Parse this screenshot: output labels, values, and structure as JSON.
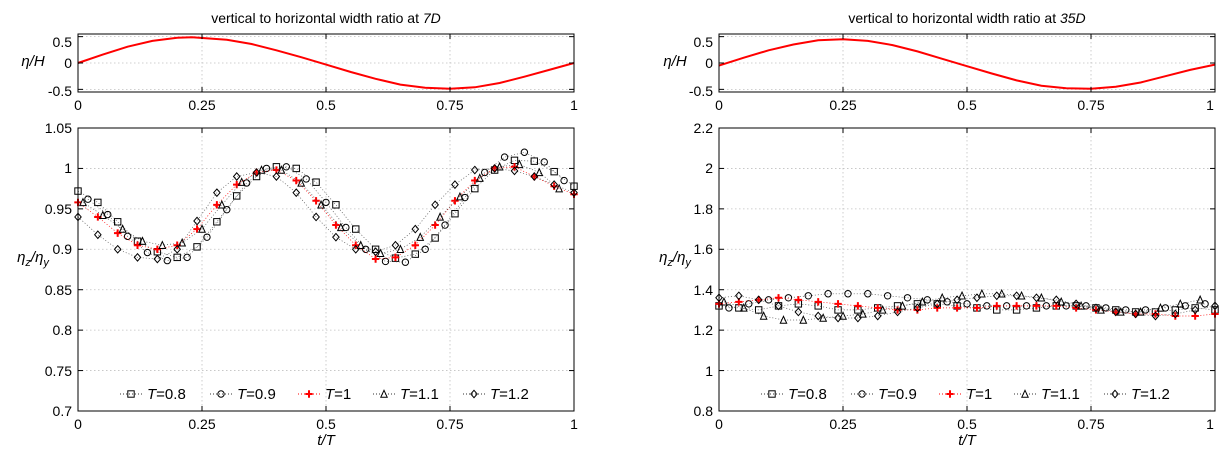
{
  "panels": [
    {
      "title": "vertical to horizontal width ratio at ",
      "title_em": "7D",
      "top_ylabel": "η/H",
      "main_ylabel": "ηz/ηy",
      "xlabel": "t/T",
      "xticks": [
        "0",
        "0.25",
        "0.5",
        "0.75",
        "1"
      ],
      "top_yticks": [
        "0.5",
        "0",
        "-0.5"
      ],
      "main_yticks": [
        "1.05",
        "1",
        "0.95",
        "0.9",
        "0.85",
        "0.8",
        "0.75",
        "0.7"
      ]
    },
    {
      "title": "vertical to horizontal width ratio at ",
      "title_em": "35D",
      "top_ylabel": "η/H",
      "main_ylabel": "ηz/ηy",
      "xlabel": "t/T",
      "xticks": [
        "0",
        "0.25",
        "0.5",
        "0.75",
        "1"
      ],
      "top_yticks": [
        "0.5",
        "0",
        "-0.5"
      ],
      "main_yticks": [
        "2.2",
        "2",
        "1.8",
        "1.6",
        "1.4",
        "1.2",
        "1",
        "0.8"
      ]
    }
  ],
  "legend": [
    {
      "label": "T=0.8",
      "marker": "square",
      "color": "#000000"
    },
    {
      "label": "T=0.9",
      "marker": "circle",
      "color": "#000000"
    },
    {
      "label": "T=1",
      "marker": "plus",
      "color": "#ff0000"
    },
    {
      "label": "T=1.1",
      "marker": "triangle",
      "color": "#000000"
    },
    {
      "label": "T=1.2",
      "marker": "diamond",
      "color": "#000000"
    }
  ],
  "chart_data": [
    {
      "type": "line",
      "title": "vertical to horizontal width ratio at 7D",
      "xlabel": "",
      "ylabel": "η/H",
      "xlim": [
        0,
        1
      ],
      "ylim": [
        -0.55,
        0.55
      ],
      "grid": true,
      "series": [
        {
          "name": "",
          "color": "#ff0000",
          "x": [
            0,
            0.05,
            0.1,
            0.15,
            0.2,
            0.23,
            0.3,
            0.35,
            0.4,
            0.45,
            0.5,
            0.55,
            0.6,
            0.65,
            0.7,
            0.75,
            0.8,
            0.85,
            0.9,
            0.95,
            1
          ],
          "y": [
            0,
            0.16,
            0.31,
            0.42,
            0.48,
            0.49,
            0.44,
            0.36,
            0.24,
            0.11,
            -0.03,
            -0.17,
            -0.3,
            -0.41,
            -0.47,
            -0.49,
            -0.46,
            -0.38,
            -0.26,
            -0.13,
            0
          ]
        }
      ]
    },
    {
      "type": "scatter",
      "title": "",
      "xlabel": "t/T",
      "ylabel": "ηz/ηy",
      "xlim": [
        0,
        1
      ],
      "ylim": [
        0.7,
        1.05
      ],
      "grid": true,
      "legend_position": "bottom",
      "series": [
        {
          "name": "T=0.8",
          "marker": "square",
          "color": "#000000",
          "x": [
            0.0,
            0.04,
            0.08,
            0.12,
            0.16,
            0.2,
            0.24,
            0.28,
            0.32,
            0.36,
            0.4,
            0.44,
            0.48,
            0.52,
            0.56,
            0.6,
            0.64,
            0.68,
            0.72,
            0.76,
            0.8,
            0.84,
            0.88,
            0.92,
            0.96,
            1.0
          ],
          "y": [
            0.972,
            0.958,
            0.934,
            0.91,
            0.897,
            0.89,
            0.903,
            0.934,
            0.966,
            0.99,
            1.002,
            1.0,
            0.983,
            0.955,
            0.925,
            0.9,
            0.889,
            0.894,
            0.914,
            0.944,
            0.975,
            0.998,
            1.01,
            1.009,
            0.996,
            0.978
          ]
        },
        {
          "name": "T=0.9",
          "marker": "circle",
          "color": "#000000",
          "x": [
            0.02,
            0.06,
            0.1,
            0.14,
            0.18,
            0.22,
            0.26,
            0.3,
            0.34,
            0.38,
            0.42,
            0.46,
            0.5,
            0.54,
            0.58,
            0.62,
            0.66,
            0.7,
            0.74,
            0.78,
            0.82,
            0.86,
            0.9,
            0.94,
            0.98
          ],
          "y": [
            0.962,
            0.943,
            0.916,
            0.896,
            0.886,
            0.89,
            0.915,
            0.949,
            0.982,
            1.0,
            1.002,
            0.987,
            0.958,
            0.927,
            0.9,
            0.885,
            0.884,
            0.9,
            0.93,
            0.964,
            0.995,
            1.014,
            1.02,
            1.008,
            0.985
          ]
        },
        {
          "name": "T=1",
          "marker": "plus",
          "color": "#ff0000",
          "x": [
            0.0,
            0.04,
            0.08,
            0.12,
            0.16,
            0.2,
            0.24,
            0.28,
            0.32,
            0.36,
            0.4,
            0.44,
            0.48,
            0.52,
            0.56,
            0.6,
            0.64,
            0.68,
            0.72,
            0.76,
            0.8,
            0.84,
            0.88,
            0.92,
            0.96,
            1.0
          ],
          "y": [
            0.958,
            0.94,
            0.92,
            0.905,
            0.9,
            0.905,
            0.925,
            0.955,
            0.98,
            0.995,
            0.998,
            0.985,
            0.96,
            0.93,
            0.905,
            0.888,
            0.89,
            0.905,
            0.93,
            0.96,
            0.985,
            1.0,
            1.002,
            0.99,
            0.978,
            0.968
          ]
        },
        {
          "name": "T=1.1",
          "marker": "triangle",
          "color": "#000000",
          "x": [
            0.01,
            0.05,
            0.09,
            0.13,
            0.17,
            0.21,
            0.25,
            0.29,
            0.33,
            0.37,
            0.41,
            0.45,
            0.49,
            0.53,
            0.57,
            0.61,
            0.65,
            0.69,
            0.73,
            0.77,
            0.81,
            0.85,
            0.89,
            0.93,
            0.97
          ],
          "y": [
            0.958,
            0.942,
            0.925,
            0.91,
            0.905,
            0.908,
            0.925,
            0.955,
            0.983,
            0.998,
            0.998,
            0.982,
            0.955,
            0.927,
            0.905,
            0.895,
            0.9,
            0.915,
            0.94,
            0.965,
            0.988,
            1.002,
            1.005,
            0.995,
            0.975
          ]
        },
        {
          "name": "T=1.2",
          "marker": "diamond",
          "color": "#000000",
          "x": [
            0.0,
            0.04,
            0.08,
            0.12,
            0.16,
            0.2,
            0.24,
            0.28,
            0.32,
            0.36,
            0.4,
            0.44,
            0.48,
            0.52,
            0.56,
            0.6,
            0.64,
            0.68,
            0.72,
            0.76,
            0.8,
            0.84,
            0.88,
            0.92,
            0.96,
            1.0
          ],
          "y": [
            0.94,
            0.918,
            0.9,
            0.89,
            0.888,
            0.9,
            0.935,
            0.97,
            0.99,
            0.995,
            0.99,
            0.97,
            0.94,
            0.915,
            0.9,
            0.897,
            0.905,
            0.925,
            0.955,
            0.98,
            0.998,
            1.0,
            0.997,
            0.99,
            0.98,
            0.97
          ]
        }
      ]
    },
    {
      "type": "line",
      "title": "vertical to horizontal width ratio at 35D",
      "xlabel": "",
      "ylabel": "η/H",
      "xlim": [
        0,
        1
      ],
      "ylim": [
        -0.55,
        0.55
      ],
      "grid": true,
      "series": [
        {
          "name": "",
          "color": "#ff0000",
          "x": [
            0,
            0.05,
            0.1,
            0.15,
            0.2,
            0.25,
            0.3,
            0.35,
            0.4,
            0.45,
            0.5,
            0.55,
            0.6,
            0.65,
            0.7,
            0.75,
            0.8,
            0.85,
            0.9,
            0.95,
            1
          ],
          "y": [
            -0.05,
            0.1,
            0.24,
            0.35,
            0.43,
            0.45,
            0.42,
            0.34,
            0.22,
            0.08,
            -0.06,
            -0.2,
            -0.33,
            -0.43,
            -0.48,
            -0.49,
            -0.45,
            -0.37,
            -0.25,
            -0.13,
            -0.03
          ]
        }
      ]
    },
    {
      "type": "scatter",
      "title": "",
      "xlabel": "t/T",
      "ylabel": "ηz/ηy",
      "xlim": [
        0,
        1
      ],
      "ylim": [
        0.8,
        2.2
      ],
      "grid": true,
      "legend_position": "bottom",
      "series": [
        {
          "name": "T=0.8",
          "marker": "square",
          "color": "#000000",
          "x": [
            0.0,
            0.04,
            0.08,
            0.12,
            0.16,
            0.2,
            0.24,
            0.28,
            0.32,
            0.36,
            0.4,
            0.44,
            0.48,
            0.52,
            0.56,
            0.6,
            0.64,
            0.68,
            0.72,
            0.76,
            0.8,
            0.84,
            0.88,
            0.92,
            0.96,
            1.0
          ],
          "y": [
            1.32,
            1.31,
            1.3,
            1.32,
            1.33,
            1.32,
            1.3,
            1.3,
            1.31,
            1.32,
            1.33,
            1.33,
            1.32,
            1.31,
            1.3,
            1.3,
            1.31,
            1.32,
            1.32,
            1.31,
            1.3,
            1.29,
            1.29,
            1.3,
            1.31,
            1.3
          ]
        },
        {
          "name": "T=0.9",
          "marker": "circle",
          "color": "#000000",
          "x": [
            0.02,
            0.06,
            0.1,
            0.14,
            0.18,
            0.22,
            0.26,
            0.3,
            0.34,
            0.38,
            0.42,
            0.46,
            0.5,
            0.54,
            0.58,
            0.62,
            0.66,
            0.7,
            0.74,
            0.78,
            0.82,
            0.86,
            0.9,
            0.94,
            0.98
          ],
          "y": [
            1.31,
            1.33,
            1.35,
            1.36,
            1.37,
            1.38,
            1.38,
            1.38,
            1.37,
            1.36,
            1.35,
            1.34,
            1.33,
            1.32,
            1.32,
            1.32,
            1.32,
            1.32,
            1.32,
            1.31,
            1.3,
            1.3,
            1.31,
            1.32,
            1.33
          ]
        },
        {
          "name": "T=1",
          "marker": "plus",
          "color": "#ff0000",
          "x": [
            0.0,
            0.04,
            0.08,
            0.12,
            0.16,
            0.2,
            0.24,
            0.28,
            0.32,
            0.36,
            0.4,
            0.44,
            0.48,
            0.52,
            0.56,
            0.6,
            0.64,
            0.68,
            0.72,
            0.76,
            0.8,
            0.84,
            0.88,
            0.92,
            0.96,
            1.0
          ],
          "y": [
            1.33,
            1.34,
            1.35,
            1.36,
            1.35,
            1.34,
            1.33,
            1.32,
            1.31,
            1.3,
            1.3,
            1.31,
            1.31,
            1.31,
            1.32,
            1.32,
            1.32,
            1.32,
            1.31,
            1.3,
            1.29,
            1.28,
            1.28,
            1.27,
            1.27,
            1.28
          ]
        },
        {
          "name": "T=1.1",
          "marker": "triangle",
          "color": "#000000",
          "x": [
            0.01,
            0.05,
            0.09,
            0.13,
            0.17,
            0.21,
            0.25,
            0.29,
            0.33,
            0.37,
            0.41,
            0.45,
            0.49,
            0.53,
            0.57,
            0.61,
            0.65,
            0.69,
            0.73,
            0.77,
            0.81,
            0.85,
            0.89,
            0.93,
            0.97
          ],
          "y": [
            1.34,
            1.31,
            1.27,
            1.25,
            1.25,
            1.26,
            1.27,
            1.28,
            1.3,
            1.32,
            1.34,
            1.36,
            1.37,
            1.38,
            1.38,
            1.37,
            1.36,
            1.34,
            1.32,
            1.3,
            1.29,
            1.29,
            1.31,
            1.33,
            1.35
          ]
        },
        {
          "name": "T=1.2",
          "marker": "diamond",
          "color": "#000000",
          "x": [
            0.0,
            0.04,
            0.08,
            0.12,
            0.16,
            0.2,
            0.24,
            0.28,
            0.32,
            0.36,
            0.4,
            0.44,
            0.48,
            0.52,
            0.56,
            0.6,
            0.64,
            0.68,
            0.72,
            0.76,
            0.8,
            0.84,
            0.88,
            0.92,
            0.96,
            1.0
          ],
          "y": [
            1.36,
            1.37,
            1.35,
            1.32,
            1.29,
            1.27,
            1.26,
            1.26,
            1.27,
            1.29,
            1.31,
            1.33,
            1.35,
            1.36,
            1.37,
            1.37,
            1.36,
            1.35,
            1.33,
            1.31,
            1.29,
            1.28,
            1.27,
            1.28,
            1.3,
            1.32
          ]
        }
      ]
    }
  ]
}
